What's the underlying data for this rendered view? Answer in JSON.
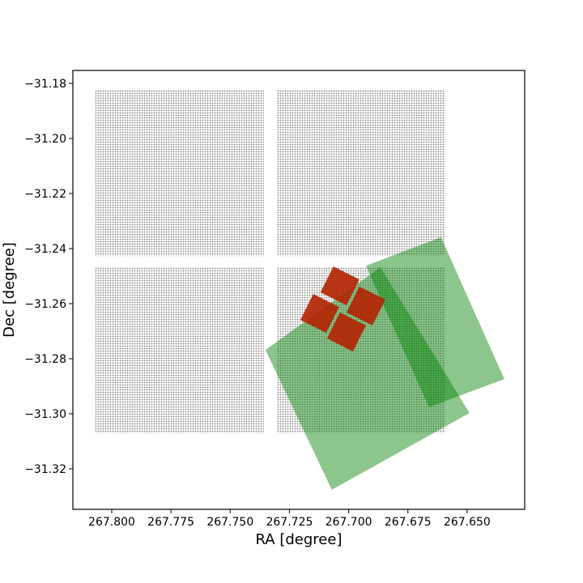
{
  "chart_data": {
    "type": "scatter",
    "x_label": "RA [degree]",
    "y_label": "Dec [degree]",
    "xlim": [
      267.8164,
      267.6257
    ],
    "ylim": [
      -31.3347,
      -31.1753
    ],
    "xticks": [
      {
        "value": 267.8,
        "label": "267.800"
      },
      {
        "value": 267.775,
        "label": "267.775"
      },
      {
        "value": 267.75,
        "label": "267.750"
      },
      {
        "value": 267.725,
        "label": "267.725"
      },
      {
        "value": 267.7,
        "label": "267.700"
      },
      {
        "value": 267.675,
        "label": "267.675"
      },
      {
        "value": 267.65,
        "label": "267.650"
      }
    ],
    "yticks": [
      {
        "value": -31.18,
        "label": "−31.18"
      },
      {
        "value": -31.2,
        "label": "−31.20"
      },
      {
        "value": -31.22,
        "label": "−31.22"
      },
      {
        "value": -31.24,
        "label": "−31.24"
      },
      {
        "value": -31.26,
        "label": "−31.26"
      },
      {
        "value": -31.28,
        "label": "−31.28"
      },
      {
        "value": -31.3,
        "label": "−31.30"
      },
      {
        "value": -31.32,
        "label": "−31.32"
      }
    ],
    "series": [
      {
        "color": "#808080",
        "regions": [
          [
            [
              267.8072,
              -31.1824
            ],
            [
              267.7358,
              -31.1824
            ],
            [
              267.7358,
              -31.2427
            ],
            [
              267.8072,
              -31.2427
            ]
          ],
          [
            [
              267.7303,
              -31.1824
            ],
            [
              267.6592,
              -31.1824
            ],
            [
              267.6592,
              -31.2427
            ],
            [
              267.7303,
              -31.2427
            ]
          ],
          [
            [
              267.8072,
              -31.2468
            ],
            [
              267.7358,
              -31.2468
            ],
            [
              267.7358,
              -31.3071
            ],
            [
              267.8072,
              -31.3071
            ]
          ],
          [
            [
              267.7303,
              -31.2468
            ],
            [
              267.6592,
              -31.2468
            ],
            [
              267.6592,
              -31.3071
            ],
            [
              267.7303,
              -31.3071
            ]
          ]
        ]
      },
      {
        "color": "#008000",
        "regions": [
          [
            [
              267.6927,
              -31.2462
            ],
            [
              267.661,
              -31.2359
            ],
            [
              267.6343,
              -31.2874
            ],
            [
              267.6661,
              -31.2976
            ]
          ],
          [
            [
              267.7351,
              -31.2768
            ],
            [
              267.6866,
              -31.2468
            ],
            [
              267.649,
              -31.2997
            ],
            [
              267.7071,
              -31.3276
            ]
          ]
        ]
      },
      {
        "color": "#b22200",
        "regions": [
          [
            [
              267.7064,
              -31.2465
            ],
            [
              267.6955,
              -31.2512
            ],
            [
              267.7009,
              -31.2606
            ],
            [
              267.7119,
              -31.2559
            ]
          ],
          [
            [
              267.6955,
              -31.2538
            ],
            [
              267.6845,
              -31.2585
            ],
            [
              267.69,
              -31.2679
            ],
            [
              267.7009,
              -31.2632
            ]
          ],
          [
            [
              267.7149,
              -31.2565
            ],
            [
              267.704,
              -31.2612
            ],
            [
              267.7095,
              -31.2706
            ],
            [
              267.7204,
              -31.2659
            ]
          ],
          [
            [
              267.7037,
              -31.2632
            ],
            [
              267.6927,
              -31.2679
            ],
            [
              267.6982,
              -31.2774
            ],
            [
              267.7091,
              -31.2726
            ]
          ]
        ]
      }
    ]
  }
}
